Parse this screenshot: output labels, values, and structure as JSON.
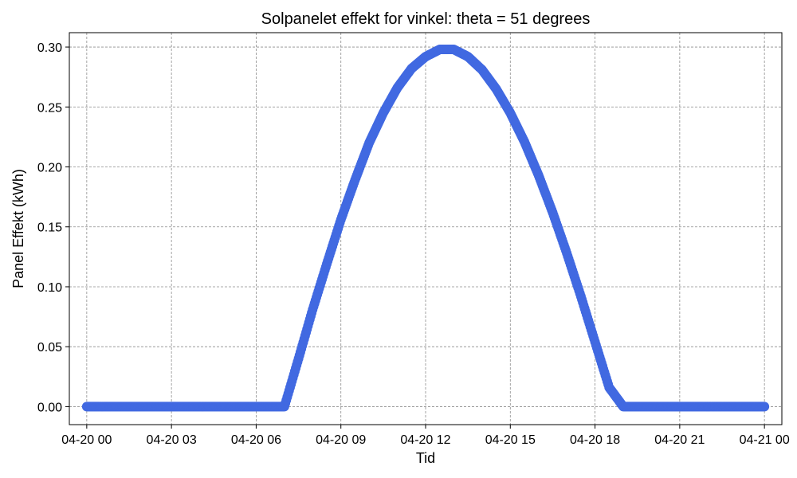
{
  "chart_data": {
    "type": "scatter",
    "title": "Solpanelet effekt for vinkel: theta = 51 degrees",
    "xlabel": "Tid",
    "ylabel": "Panel Effekt (kWh)",
    "marker_color": "#4169e1",
    "grid": true,
    "xlim": [
      "2024-04-19T23:23",
      "2024-04-21T00:37"
    ],
    "ylim": [
      -0.015,
      0.312
    ],
    "x_ticks": [
      {
        "value": "2024-04-20T00:00",
        "label": "04-20 00"
      },
      {
        "value": "2024-04-20T03:00",
        "label": "04-20 03"
      },
      {
        "value": "2024-04-20T06:00",
        "label": "04-20 06"
      },
      {
        "value": "2024-04-20T09:00",
        "label": "04-20 09"
      },
      {
        "value": "2024-04-20T12:00",
        "label": "04-20 12"
      },
      {
        "value": "2024-04-20T15:00",
        "label": "04-20 15"
      },
      {
        "value": "2024-04-20T18:00",
        "label": "04-20 18"
      },
      {
        "value": "2024-04-20T21:00",
        "label": "04-20 21"
      },
      {
        "value": "2024-04-21T00:00",
        "label": "04-21 00"
      }
    ],
    "y_ticks": [
      {
        "value": 0.0,
        "label": "0.00"
      },
      {
        "value": 0.05,
        "label": "0.05"
      },
      {
        "value": 0.1,
        "label": "0.10"
      },
      {
        "value": 0.15,
        "label": "0.15"
      },
      {
        "value": 0.2,
        "label": "0.20"
      },
      {
        "value": 0.25,
        "label": "0.25"
      },
      {
        "value": 0.3,
        "label": "0.30"
      }
    ],
    "x": [
      "2024-04-20T00:00",
      "2024-04-20T00:30",
      "2024-04-20T01:00",
      "2024-04-20T01:30",
      "2024-04-20T02:00",
      "2024-04-20T02:30",
      "2024-04-20T03:00",
      "2024-04-20T03:30",
      "2024-04-20T04:00",
      "2024-04-20T04:30",
      "2024-04-20T05:00",
      "2024-04-20T05:30",
      "2024-04-20T06:00",
      "2024-04-20T06:30",
      "2024-04-20T07:00",
      "2024-04-20T07:30",
      "2024-04-20T08:00",
      "2024-04-20T08:30",
      "2024-04-20T09:00",
      "2024-04-20T09:30",
      "2024-04-20T10:00",
      "2024-04-20T10:30",
      "2024-04-20T11:00",
      "2024-04-20T11:30",
      "2024-04-20T12:00",
      "2024-04-20T12:30",
      "2024-04-20T13:00",
      "2024-04-20T13:30",
      "2024-04-20T14:00",
      "2024-04-20T14:30",
      "2024-04-20T15:00",
      "2024-04-20T15:30",
      "2024-04-20T16:00",
      "2024-04-20T16:30",
      "2024-04-20T17:00",
      "2024-04-20T17:30",
      "2024-04-20T18:00",
      "2024-04-20T18:30",
      "2024-04-20T19:00",
      "2024-04-20T19:30",
      "2024-04-20T20:00",
      "2024-04-20T20:30",
      "2024-04-20T21:00",
      "2024-04-20T21:30",
      "2024-04-20T22:00",
      "2024-04-20T22:30",
      "2024-04-20T23:00",
      "2024-04-20T23:30",
      "2024-04-21T00:00"
    ],
    "y": [
      0,
      0,
      0,
      0,
      0,
      0,
      0,
      0,
      0,
      0,
      0,
      0,
      0,
      0,
      0,
      0.04,
      0.081,
      0.119,
      0.156,
      0.189,
      0.22,
      0.245,
      0.266,
      0.282,
      0.292,
      0.298,
      0.298,
      0.292,
      0.281,
      0.265,
      0.245,
      0.221,
      0.193,
      0.162,
      0.128,
      0.092,
      0.054,
      0.016,
      0,
      0,
      0,
      0,
      0,
      0,
      0,
      0,
      0,
      0,
      0
    ]
  }
}
